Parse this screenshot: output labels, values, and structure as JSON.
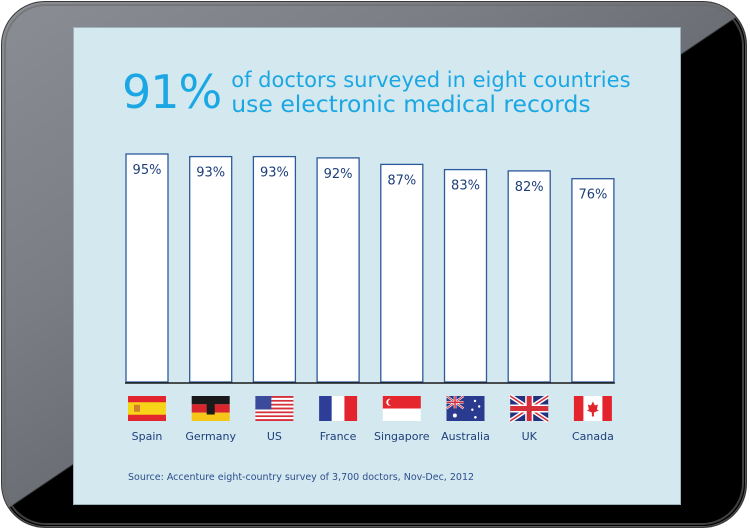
{
  "headline": {
    "big_number": "91%",
    "line1": "of doctors surveyed in eight countries",
    "line2": "use electronic medical records"
  },
  "chart_data": {
    "type": "bar",
    "title": "91% of doctors surveyed in eight countries use electronic medical records",
    "xlabel": "",
    "ylabel": "",
    "categories": [
      "Spain",
      "Germany",
      "US",
      "France",
      "Singapore",
      "Australia",
      "UK",
      "Canada"
    ],
    "values": [
      95,
      93,
      93,
      92,
      87,
      83,
      82,
      76
    ],
    "labels": [
      "95%",
      "93%",
      "93%",
      "92%",
      "87%",
      "83%",
      "82%",
      "76%"
    ],
    "flags": [
      "spain-flag",
      "germany-flag",
      "us-flag",
      "france-flag",
      "singapore-flag",
      "australia-flag",
      "uk-flag",
      "canada-flag"
    ],
    "ylim": [
      0,
      100
    ],
    "grid": false,
    "legend": "none"
  },
  "source": "Source: Accenture eight-country survey of 3,700 doctors, Nov-Dec, 2012",
  "colors": {
    "screen_bg": "#d4e8f0",
    "headline": "#1ba7e3",
    "bar_fill": "#ffffff",
    "bar_stroke": "#2d5a9c",
    "label": "#1e3f7a",
    "source": "#2d4f8c"
  }
}
